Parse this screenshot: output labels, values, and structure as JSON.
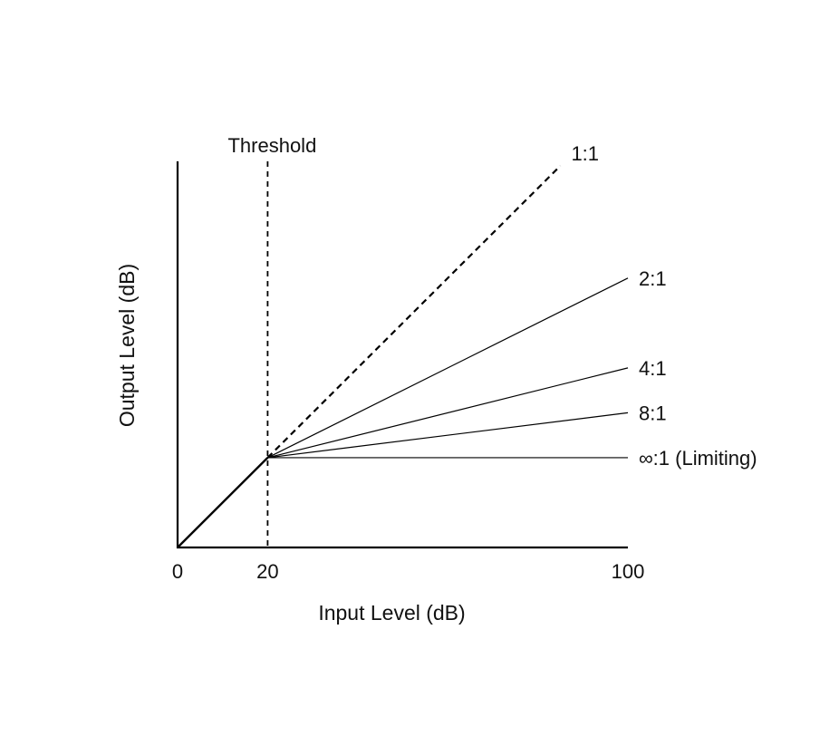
{
  "chart_data": {
    "type": "line",
    "title": "",
    "xlabel": "Input Level (dB)",
    "ylabel": "Output Level (dB)",
    "xlim": [
      0,
      100
    ],
    "ylim": [
      0,
      86
    ],
    "x_ticks": [
      {
        "value": 0,
        "label": "0"
      },
      {
        "value": 20,
        "label": "20"
      },
      {
        "value": 100,
        "label": "100"
      }
    ],
    "threshold": {
      "x": 20,
      "label": "Threshold"
    },
    "grid": false,
    "legend": "none",
    "series": [
      {
        "name": "1:1",
        "style": "dashed",
        "ratio": 1,
        "x": [
          20,
          85
        ],
        "y": [
          20,
          85
        ]
      },
      {
        "name": "2:1",
        "style": "solid",
        "ratio": 2,
        "x": [
          20,
          100
        ],
        "y": [
          20,
          60
        ]
      },
      {
        "name": "4:1",
        "style": "solid",
        "ratio": 4,
        "x": [
          20,
          100
        ],
        "y": [
          20,
          40
        ]
      },
      {
        "name": "8:1",
        "style": "solid",
        "ratio": 8,
        "x": [
          20,
          100
        ],
        "y": [
          20,
          30
        ]
      },
      {
        "name": "∞:1 (Limiting)",
        "style": "solid",
        "ratio": "inf",
        "x": [
          20,
          100
        ],
        "y": [
          20,
          20
        ]
      }
    ],
    "below_threshold": {
      "x": [
        0,
        20
      ],
      "y": [
        0,
        20
      ]
    }
  }
}
